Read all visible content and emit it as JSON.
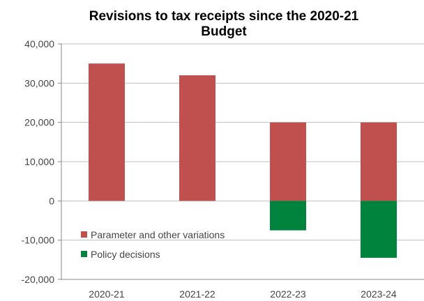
{
  "chart_data": {
    "type": "bar",
    "stacked": true,
    "title_lines": [
      "Revisions to tax receipts since the 2020-21",
      "Budget"
    ],
    "xlabel": "",
    "ylabel": "",
    "categories": [
      "2020-21",
      "2021-22",
      "2022-23",
      "2023-24"
    ],
    "series": [
      {
        "name": "Parameter and other variations",
        "color": "#c0504d",
        "values": [
          35000,
          32000,
          20000,
          20000
        ]
      },
      {
        "name": "Policy decisions",
        "color": "#00843d",
        "values": [
          0,
          0,
          -7500,
          -14500
        ]
      }
    ],
    "ylim": [
      -20000,
      40000
    ],
    "yticks": [
      40000,
      30000,
      20000,
      10000,
      0,
      -10000,
      -20000
    ],
    "ytick_labels": [
      "40,000",
      "30,000",
      "20,000",
      "10,000",
      "0",
      "-10,000",
      "-20,000"
    ],
    "grid": true,
    "legend_position": "bottom-left"
  }
}
